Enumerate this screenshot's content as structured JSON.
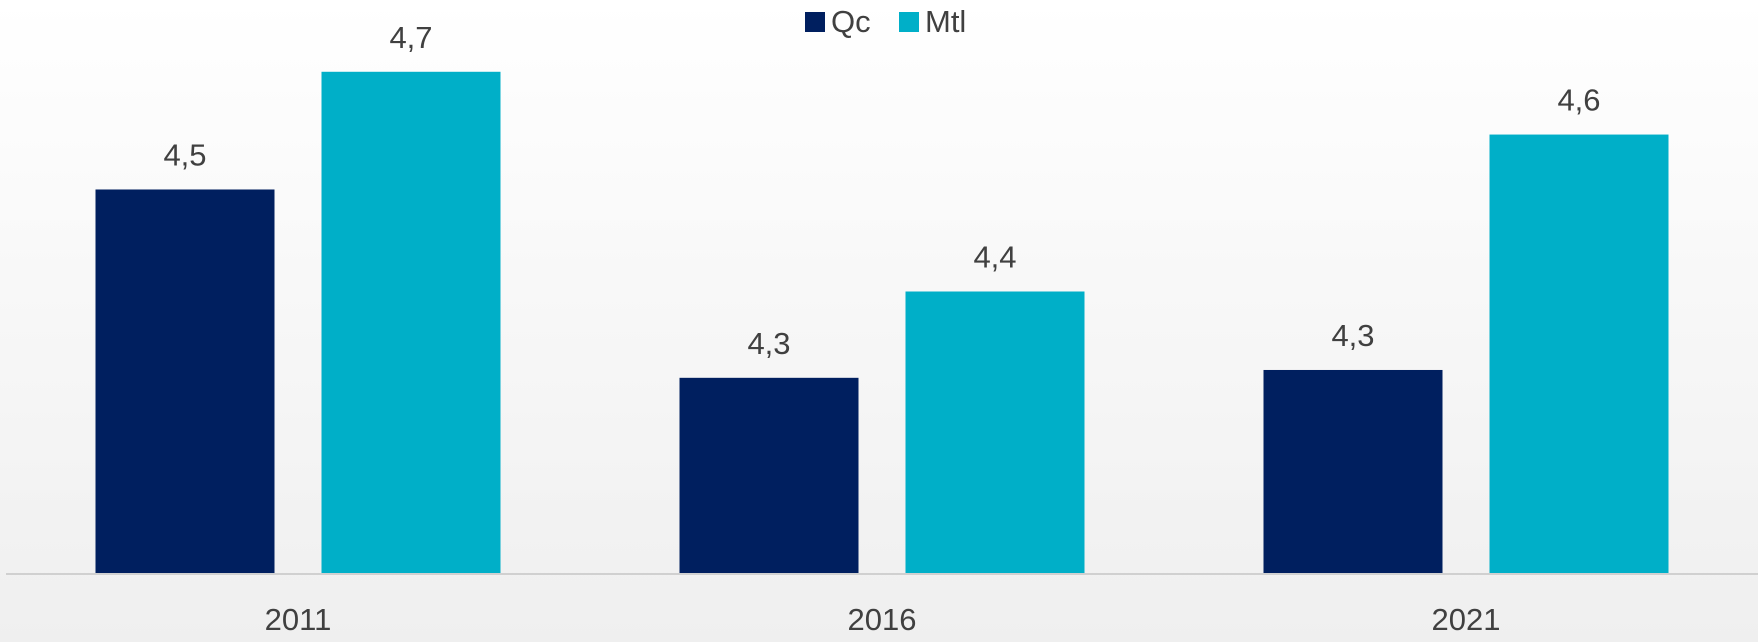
{
  "chart_data": {
    "type": "bar",
    "categories": [
      "2011",
      "2016",
      "2021"
    ],
    "series": [
      {
        "name": "Qc",
        "color": "#001f5f",
        "values": [
          4.52,
          4.28,
          4.29
        ],
        "value_labels": [
          "4,5",
          "4,3",
          "4,3"
        ]
      },
      {
        "name": "Mtl",
        "color": "#00afc8",
        "values": [
          4.67,
          4.39,
          4.59
        ],
        "value_labels": [
          "4,7",
          "4,4",
          "4,6"
        ]
      }
    ],
    "ylim": [
      4.03,
      4.75
    ],
    "legend": "top"
  }
}
